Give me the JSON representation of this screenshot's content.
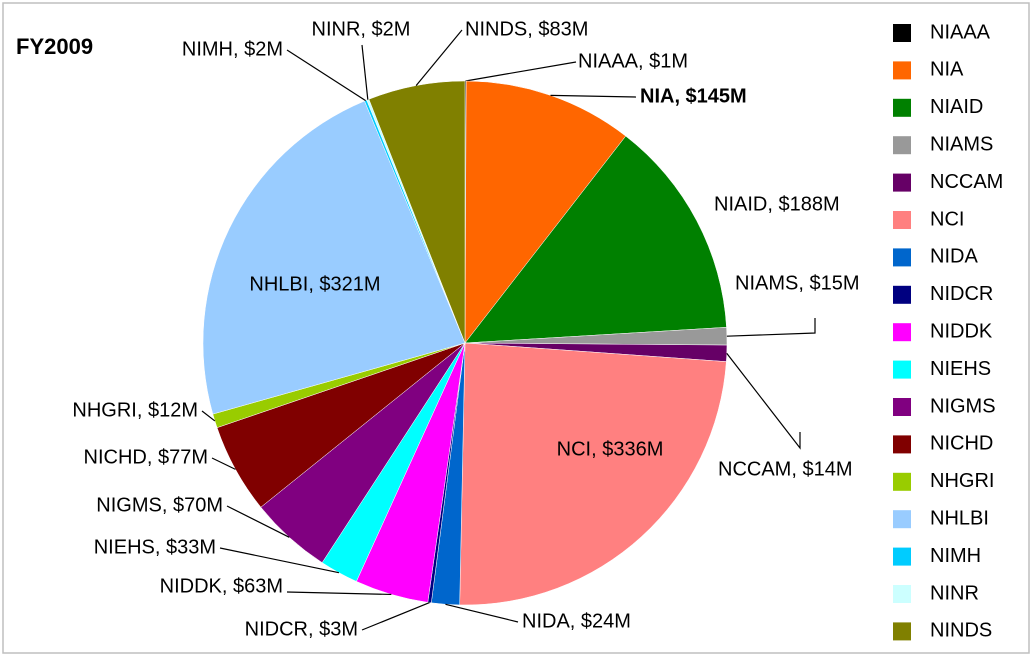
{
  "chart_data": {
    "type": "pie",
    "title": "FY2009",
    "categories": [
      "NIAAA",
      "NIA",
      "NIAID",
      "NIAMS",
      "NCCAM",
      "NCI",
      "NIDA",
      "NIDCR",
      "NIDDK",
      "NIEHS",
      "NIGMS",
      "NICHD",
      "NHGRI",
      "NHLBI",
      "NIMH",
      "NINR",
      "NINDS"
    ],
    "values": [
      1,
      145,
      188,
      15,
      14,
      336,
      24,
      3,
      63,
      33,
      70,
      77,
      12,
      321,
      2,
      2,
      83
    ],
    "value_labels": [
      "NIAAA, $1M",
      "NIA, $145M",
      "NIAID, $188M",
      "NIAMS, $15M",
      "NCCAM, $14M",
      "NCI, $336M",
      "NIDA, $24M",
      "NIDCR, $3M",
      "NIDDK, $63M",
      "NIEHS, $33M",
      "NIGMS, $70M",
      "NICHD, $77M",
      "NHGRI, $12M",
      "NHLBI, $321M",
      "NIMH, $2M",
      "NINR, $2M",
      "NINDS, $83M"
    ],
    "colors": [
      "#000000",
      "#ff6600",
      "#008000",
      "#999999",
      "#660066",
      "#ff8080",
      "#0066cc",
      "#000080",
      "#ff00ff",
      "#00ffff",
      "#800080",
      "#800000",
      "#99cc00",
      "#99ccff",
      "#00ccff",
      "#ccffff",
      "#808000"
    ],
    "legend": "right"
  }
}
